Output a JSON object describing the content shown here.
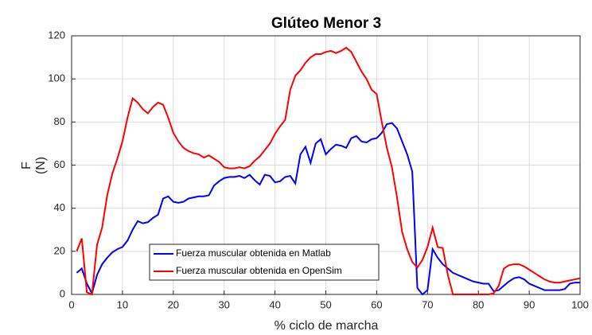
{
  "chart_data": {
    "type": "line",
    "title": "Glúteo Menor 3",
    "xlabel": "% ciclo de marcha",
    "ylabel": [
      "F",
      "(N)"
    ],
    "x": [
      1,
      2,
      3,
      4,
      5,
      6,
      7,
      8,
      9,
      10,
      11,
      12,
      13,
      14,
      15,
      16,
      17,
      18,
      19,
      20,
      21,
      22,
      23,
      24,
      25,
      26,
      27,
      28,
      29,
      30,
      31,
      32,
      33,
      34,
      35,
      36,
      37,
      38,
      39,
      40,
      41,
      42,
      43,
      44,
      45,
      46,
      47,
      48,
      49,
      50,
      51,
      52,
      53,
      54,
      55,
      56,
      57,
      58,
      59,
      60,
      61,
      62,
      63,
      64,
      65,
      66,
      67,
      68,
      69,
      70,
      71,
      72,
      73,
      74,
      75,
      76,
      77,
      78,
      79,
      80,
      81,
      82,
      83,
      84,
      85,
      86,
      87,
      88,
      89,
      90,
      91,
      92,
      93,
      94,
      95,
      96,
      97,
      98,
      99,
      100
    ],
    "series": [
      {
        "name": "Fuerza muscular obtenida en Matlab",
        "color": "#0000ff",
        "values": [
          10,
          12,
          5,
          0.5,
          9,
          14,
          17,
          19.5,
          21,
          22,
          25,
          30,
          34,
          33,
          33.5,
          35.5,
          37,
          44.5,
          45.5,
          43,
          42.5,
          43,
          44.5,
          45,
          45.5,
          45.5,
          46,
          50.5,
          52.5,
          54,
          54.5,
          54.5,
          55,
          54,
          55.5,
          53,
          51,
          55.5,
          55,
          52,
          52.5,
          54.5,
          55,
          51.5,
          65,
          68.5,
          61,
          70,
          72,
          65,
          67.5,
          69.5,
          69,
          68,
          72.5,
          73.5,
          71,
          70.5,
          72,
          72.5,
          75,
          79,
          79.5,
          77,
          71,
          65,
          57,
          3,
          0,
          2,
          21,
          17,
          14,
          12,
          10,
          9,
          8,
          7,
          6,
          5.5,
          5,
          5,
          1.5,
          2,
          4,
          6,
          7.5,
          8,
          7,
          5,
          4,
          3,
          2,
          2,
          2,
          2,
          2.5,
          5,
          5.5,
          5.5
        ]
      },
      {
        "name": "Fuerza muscular obtenida en OpenSim",
        "color": "#ff0000",
        "values": [
          20,
          26,
          1,
          0,
          23,
          31,
          46,
          56,
          63,
          71,
          82,
          91,
          89,
          86,
          84,
          87,
          89,
          88,
          82,
          75,
          71,
          68,
          66.5,
          65.5,
          65,
          63.5,
          64.5,
          63,
          61.5,
          59,
          58.5,
          58.5,
          59,
          58.5,
          59.5,
          62,
          64,
          67,
          70,
          74.5,
          78,
          81,
          95,
          101.5,
          104,
          107.5,
          110,
          111.5,
          111.5,
          112.5,
          113,
          112,
          113,
          114.5,
          112.5,
          108,
          103.5,
          100,
          95,
          93,
          80,
          68,
          59,
          45,
          29,
          21,
          15,
          12.5,
          16,
          22,
          31,
          22,
          21.5,
          9,
          0,
          0,
          0,
          0,
          0,
          0,
          0,
          0,
          0.5,
          4,
          12,
          13.5,
          14,
          14,
          13,
          11.5,
          10,
          8.5,
          7,
          6,
          5.5,
          5.5,
          6,
          6.5,
          7,
          7.5
        ]
      }
    ],
    "xlim": [
      0,
      100
    ],
    "xticks": [
      0,
      10,
      20,
      30,
      40,
      50,
      60,
      70,
      80,
      90,
      100
    ],
    "ylim": [
      0,
      120
    ],
    "yticks": [
      0,
      20,
      40,
      60,
      80,
      100,
      120
    ],
    "grid": true
  }
}
